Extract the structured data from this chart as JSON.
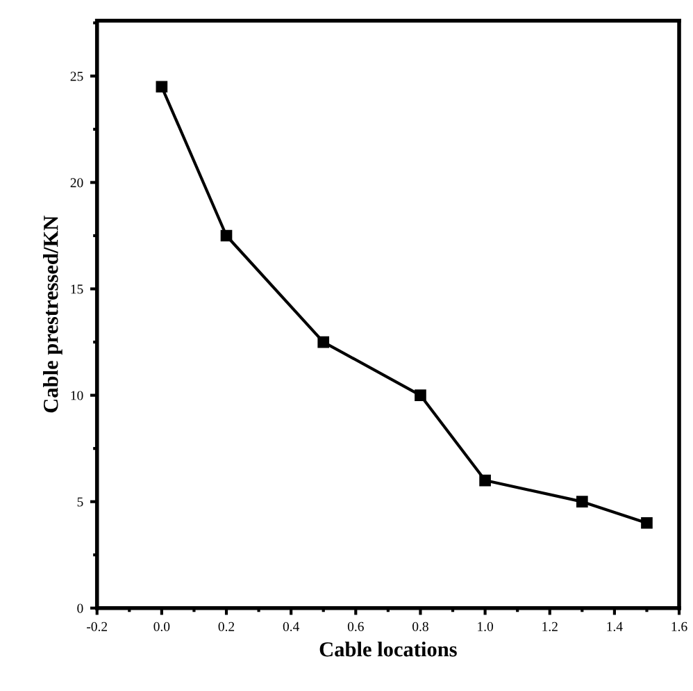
{
  "chart_data": {
    "type": "line",
    "xlabel": "Cable locations",
    "ylabel": "Cable prestressed/KN",
    "x": [
      0.0,
      0.2,
      0.5,
      0.8,
      1.0,
      1.3,
      1.5
    ],
    "series": [
      {
        "color": "#000000",
        "values": [
          24.5,
          17.5,
          12.5,
          10.0,
          6.0,
          5.0,
          4.0
        ]
      }
    ],
    "marker": "square",
    "line_style": "solid",
    "grid": false,
    "xlim": [
      -0.2,
      1.6
    ],
    "xticks": [
      -0.2,
      {
        "value": 0,
        "label": "0.0"
      },
      0.2,
      0.4,
      0.6,
      0.8,
      {
        "value": 1,
        "label": "1.0"
      },
      1.2,
      1.4,
      1.6
    ],
    "ylim": [
      0,
      27.6
    ],
    "yticks": [
      0,
      5,
      10,
      15,
      20,
      25
    ]
  }
}
